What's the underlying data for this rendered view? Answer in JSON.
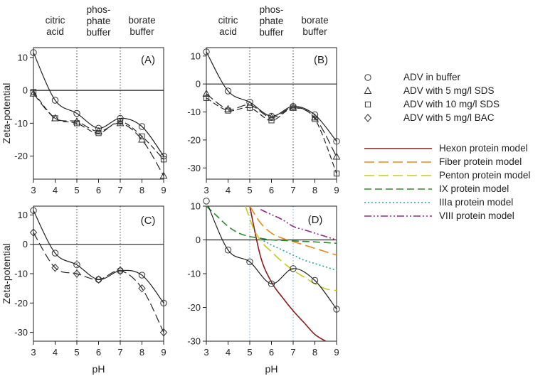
{
  "region_labels": [
    "citric\nacid",
    "phos-\nphate\nbuffer",
    "borate\nbuffer"
  ],
  "legend_symbols": [
    {
      "marker": "circle",
      "label": "ADV in buffer"
    },
    {
      "marker": "triangle",
      "label": "ADV with 5 mg/l SDS"
    },
    {
      "marker": "square",
      "label": "ADV with 10 mg/l SDS"
    },
    {
      "marker": "diamond",
      "label": "ADV with 5 mg/l BAC"
    }
  ],
  "legend_models": [
    {
      "label": "Hexon protein model",
      "color": "#8b1a1a",
      "dash": ""
    },
    {
      "label": "Fiber protein model",
      "color": "#e88a1a",
      "dash": "14 6"
    },
    {
      "label": "Penton protein model",
      "color": "#c8c820",
      "dash": "14 6"
    },
    {
      "label": "IX protein model",
      "color": "#2e8b2e",
      "dash": "10 5"
    },
    {
      "label": "IIIa protein model",
      "color": "#2aa0a0",
      "dash": "2 3"
    },
    {
      "label": "VIII protein model",
      "color": "#8b2a8b",
      "dash": "10 3 2 3 2 3"
    }
  ],
  "chart_data": [
    {
      "type": "scatter",
      "panel": "A",
      "label": "(A)",
      "xlabel": "",
      "ylabel": "Zeta-potential",
      "xlim": [
        3,
        9
      ],
      "ylim": [
        -27,
        13
      ],
      "xticks": [
        3,
        4,
        5,
        6,
        7,
        8,
        9
      ],
      "yticks": [
        -20,
        -10,
        0,
        10
      ],
      "show_x_ticklabels": true,
      "show_region_labels": true,
      "x": [
        3,
        4,
        5,
        6,
        7,
        8,
        9
      ],
      "series": [
        {
          "name": "ADV in buffer",
          "marker": "circle",
          "values": [
            11.5,
            -3,
            -7,
            -11.5,
            -8.5,
            -11,
            -20
          ]
        },
        {
          "name": "ADV with 5 mg/l SDS",
          "marker": "triangle",
          "values": [
            -1,
            -8.5,
            -9.5,
            -12.5,
            -10,
            -15,
            -26
          ]
        },
        {
          "name": "ADV with 10 mg/l SDS",
          "marker": "square",
          "values": [
            -0.5,
            -8.5,
            -10,
            -13,
            -9.5,
            -14,
            -21
          ]
        }
      ]
    },
    {
      "type": "scatter",
      "panel": "B",
      "label": "(B)",
      "xlabel": "",
      "ylabel": "",
      "xlim": [
        3,
        9
      ],
      "ylim": [
        -34,
        13
      ],
      "xticks": [
        3,
        4,
        5,
        6,
        7,
        8,
        9
      ],
      "yticks": [
        -30,
        -20,
        -10,
        0,
        10
      ],
      "show_x_ticklabels": true,
      "show_region_labels": true,
      "x": [
        3,
        4,
        5,
        6,
        7,
        8,
        9
      ],
      "series": [
        {
          "name": "ADV in buffer",
          "marker": "circle",
          "values": [
            11.5,
            -2.5,
            -6.5,
            -11.5,
            -8,
            -11,
            -20.5
          ]
        },
        {
          "name": "ADV with 5 mg/l SDS",
          "marker": "triangle",
          "values": [
            -3.5,
            -9,
            -7.5,
            -12,
            -8.5,
            -12,
            -26
          ]
        },
        {
          "name": "ADV with 10 mg/l SDS",
          "marker": "square",
          "values": [
            -5,
            -9.5,
            -8.5,
            -13,
            -8.5,
            -12.5,
            -32
          ]
        }
      ]
    },
    {
      "type": "scatter",
      "panel": "C",
      "label": "(C)",
      "xlabel": "pH",
      "ylabel": "Zeta-potential",
      "xlim": [
        3,
        9
      ],
      "ylim": [
        -33,
        13
      ],
      "xticks": [
        3,
        4,
        5,
        6,
        7,
        8,
        9
      ],
      "yticks": [
        -30,
        -20,
        -10,
        0,
        10
      ],
      "show_x_ticklabels": true,
      "show_region_labels": false,
      "x": [
        3,
        4,
        5,
        6,
        7,
        8,
        9
      ],
      "series": [
        {
          "name": "ADV in buffer",
          "marker": "circle",
          "values": [
            11.5,
            -3,
            -7,
            -12,
            -9,
            -10.5,
            -20
          ]
        },
        {
          "name": "ADV with 5 mg/l BAC",
          "marker": "diamond",
          "values": [
            4,
            -8,
            -10,
            -12,
            -9,
            -15,
            -30
          ]
        }
      ]
    },
    {
      "type": "line",
      "panel": "D",
      "label": "(D)",
      "xlabel": "pH",
      "ylabel": "",
      "xlim": [
        3,
        9
      ],
      "ylim": [
        -30,
        10
      ],
      "xticks": [
        3,
        4,
        5,
        6,
        7,
        8,
        9
      ],
      "yticks": [
        -30,
        -20,
        -10,
        0,
        10
      ],
      "show_x_ticklabels": true,
      "show_region_labels": false,
      "x": [
        3,
        4,
        5,
        6,
        7,
        8,
        9
      ],
      "series": [
        {
          "name": "ADV in buffer",
          "marker": "circle",
          "values": [
            11.5,
            -3,
            -6.5,
            -13,
            -8.5,
            -12,
            -20.5
          ]
        }
      ],
      "models": [
        {
          "name": "Hexon protein model",
          "color": "#8b1a1a",
          "dash": "",
          "x": [
            5,
            5.5,
            6,
            6.5,
            7,
            7.5,
            8,
            8.5
          ],
          "y": [
            10,
            -5,
            -12.5,
            -17,
            -21,
            -24.5,
            -28,
            -30
          ]
        },
        {
          "name": "Fiber protein model",
          "color": "#e88a1a",
          "dash": "14 6",
          "x": [
            5,
            5.5,
            6,
            6.5,
            7,
            7.5,
            8,
            8.5,
            9
          ],
          "y": [
            10,
            5,
            2,
            0.5,
            -0.5,
            -1.5,
            -2.5,
            -3.5,
            -4.5
          ]
        },
        {
          "name": "Penton protein model",
          "color": "#c8c820",
          "dash": "14 6",
          "x": [
            4.8,
            5.2,
            5.6,
            6,
            6.5,
            7,
            7.5,
            8,
            8.5,
            9
          ],
          "y": [
            10,
            3,
            -1,
            -3.5,
            -6.5,
            -9,
            -11,
            -13,
            -14.5,
            -15
          ]
        },
        {
          "name": "IX protein model",
          "color": "#2e8b2e",
          "dash": "10 5",
          "x": [
            3,
            3.5,
            4,
            4.5,
            5,
            5.5,
            6,
            7,
            8,
            9
          ],
          "y": [
            10,
            7,
            4,
            2,
            1,
            0.5,
            0,
            -0.3,
            -0.6,
            -1
          ]
        },
        {
          "name": "IIIa protein model",
          "color": "#2aa0a0",
          "dash": "2 3",
          "x": [
            5.5,
            6,
            6.5,
            7,
            7.5,
            8,
            8.5,
            9
          ],
          "y": [
            0.2,
            -1.5,
            -3,
            -4.5,
            -6,
            -7,
            -8,
            -9
          ]
        },
        {
          "name": "VIII protein model",
          "color": "#8b2a8b",
          "dash": "10 3 2 3 2 3",
          "x": [
            5.5,
            6,
            6.5,
            7,
            7.5,
            8,
            8.5,
            9
          ],
          "y": [
            9,
            7.5,
            6,
            4,
            3,
            2,
            1,
            0
          ]
        }
      ]
    }
  ]
}
